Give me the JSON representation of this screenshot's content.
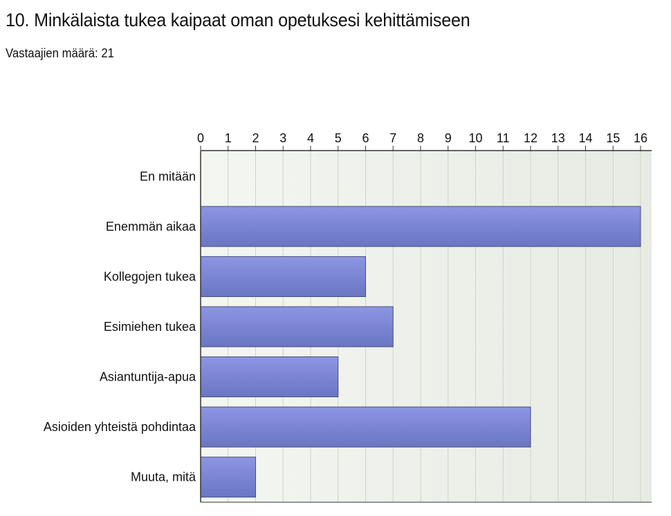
{
  "header": {
    "title": "10. Minkälaista tukea kaipaat oman opetuksesi kehittämiseen",
    "subtitle": "Vastaajien määrä: 21"
  },
  "colors": {
    "bar_top": "#8c96e2",
    "bar_bottom": "#6a76c2",
    "bar_stroke": "#4a4f7a",
    "plot_bg_left": "#f4f6f1",
    "plot_bg_right": "#e7ebe3",
    "grid": "#cfd3cb",
    "axis": "#333333"
  },
  "chart_data": {
    "type": "bar",
    "orientation": "horizontal",
    "categories": [
      "En mitään",
      "Enemmän aikaa",
      "Kollegojen tukea",
      "Esimiehen tukea",
      "Asiantuntija-apua",
      "Asioiden yhteistä pohdintaa",
      "Muuta, mitä"
    ],
    "values": [
      0,
      16,
      6,
      7,
      5,
      12,
      2
    ],
    "x_ticks": [
      0,
      1,
      2,
      3,
      4,
      5,
      6,
      7,
      8,
      9,
      10,
      11,
      12,
      13,
      14,
      15,
      16
    ],
    "xlim": [
      0,
      16
    ],
    "x_axis_position": "top",
    "grid": true,
    "legend": "none"
  }
}
